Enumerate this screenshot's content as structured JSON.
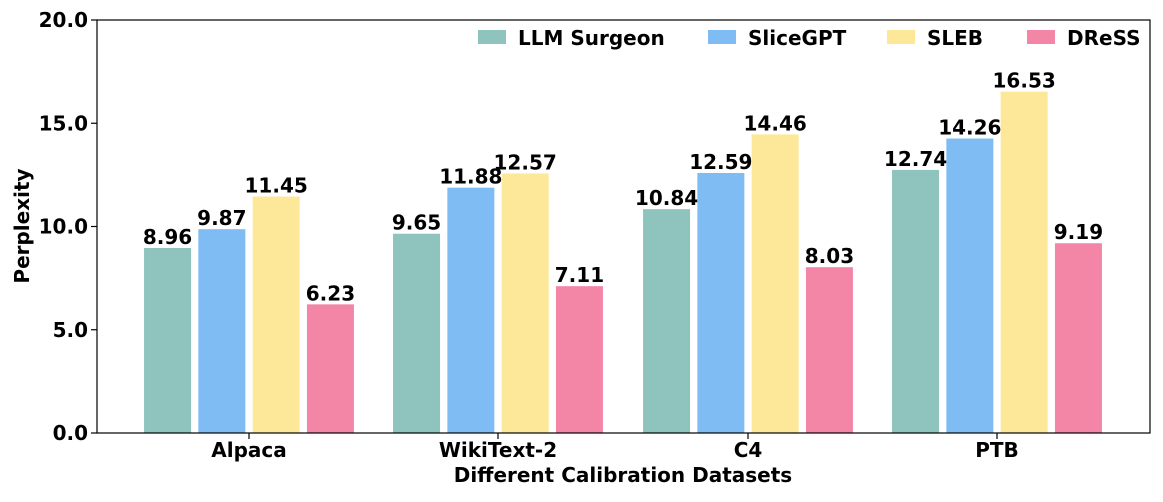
{
  "chart_data": {
    "type": "bar",
    "title": "",
    "xlabel": "Different Calibration Datasets",
    "ylabel": "Perplexity",
    "ylim": [
      0,
      20
    ],
    "yticks": [
      "0.0",
      "5.0",
      "10.0",
      "15.0",
      "20.0"
    ],
    "ytick_values": [
      0,
      5,
      10,
      15,
      20
    ],
    "categories": [
      "Alpaca",
      "WikiText-2",
      "C4",
      "PTB"
    ],
    "series": [
      {
        "name": "LLM Surgeon",
        "color": "#8ec4bd",
        "values": [
          8.96,
          9.65,
          10.84,
          12.74
        ],
        "labels": [
          "8.96",
          "9.65",
          "10.84",
          "12.74"
        ]
      },
      {
        "name": "SliceGPT",
        "color": "#7fbcf3",
        "values": [
          9.87,
          11.88,
          12.59,
          14.26
        ],
        "labels": [
          "9.87",
          "11.88",
          "12.59",
          "14.26"
        ]
      },
      {
        "name": "SLEB",
        "color": "#fde89a",
        "values": [
          11.45,
          12.57,
          14.46,
          16.53
        ],
        "labels": [
          "11.45",
          "12.57",
          "14.46",
          "16.53"
        ]
      },
      {
        "name": "DReSS",
        "color": "#f386a6",
        "values": [
          6.23,
          7.11,
          8.03,
          9.19
        ],
        "labels": [
          "6.23",
          "7.11",
          "8.03",
          "9.19"
        ]
      }
    ],
    "legend": "top-right",
    "grid": false
  }
}
